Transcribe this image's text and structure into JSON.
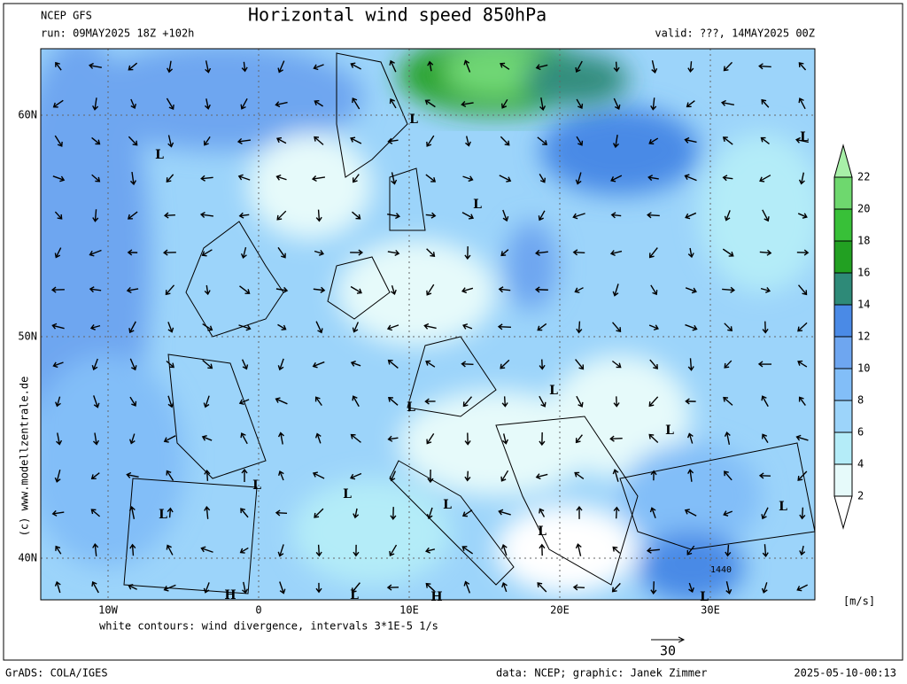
{
  "header": {
    "model": "NCEP GFS",
    "title": "Horizontal wind speed 850hPa",
    "run": "run: 09MAY2025 18Z +102h",
    "valid": "valid: ???, 14MAY2025 00Z"
  },
  "map": {
    "lat_ticks": [
      {
        "value": 60,
        "label": "60N"
      },
      {
        "value": 50,
        "label": "50N"
      },
      {
        "value": 40,
        "label": "40N"
      }
    ],
    "lon_ticks": [
      {
        "value": -10,
        "label": "10W"
      },
      0,
      {
        "value": 10,
        "label": "10E"
      },
      {
        "value": 20,
        "label": "20E"
      },
      {
        "value": 30,
        "label": "30E"
      }
    ],
    "pressure_labels": [
      "L",
      "L",
      "L",
      "L",
      "L",
      "L",
      "L",
      "L",
      "L",
      "L",
      "L",
      "L",
      "L",
      "H",
      "L",
      "H",
      "L"
    ],
    "contour_label": "1440",
    "caption": "white contours: wind divergence, intervals 3*1E-5 1/s",
    "reference_vector": "30",
    "watermark": "(c) www.modellzentrale.de"
  },
  "colorbar": {
    "levels": [
      2,
      4,
      6,
      8,
      10,
      12,
      14,
      16,
      18,
      20,
      22
    ],
    "colors": [
      "#ffffff",
      "#e6fafa",
      "#b4ecf8",
      "#9cd4fa",
      "#82bef8",
      "#6ea6f0",
      "#4a8ae6",
      "#2e8a78",
      "#22a022",
      "#38c038",
      "#6ed86e",
      "#a8f0a8"
    ],
    "unit": "[m/s]"
  },
  "footer": {
    "software": "GrADS: COLA/IGES",
    "credits": "data: NCEP; graphic: Janek Zimmer",
    "timestamp": "2025-05-10-00:13"
  }
}
